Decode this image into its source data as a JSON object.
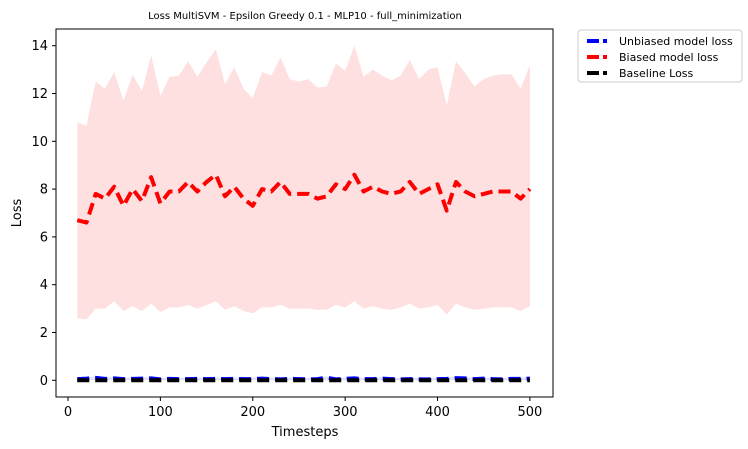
{
  "chart_data": {
    "type": "line",
    "title": "Loss MultiSVM - Epsilon Greedy 0.1 - MLP10 - full_minimization",
    "xlabel": "Timesteps",
    "ylabel": "Loss",
    "xlim": [
      -13,
      525
    ],
    "ylim": [
      -0.7,
      14.7
    ],
    "xticks": [
      0,
      100,
      200,
      300,
      400,
      500
    ],
    "yticks": [
      0,
      2,
      4,
      6,
      8,
      10,
      12,
      14
    ],
    "grid": false,
    "legend_position": "outside-top-right",
    "x": [
      10,
      20,
      30,
      40,
      50,
      60,
      70,
      80,
      90,
      100,
      110,
      120,
      130,
      140,
      150,
      160,
      170,
      180,
      190,
      200,
      210,
      220,
      230,
      240,
      250,
      260,
      270,
      280,
      290,
      300,
      310,
      320,
      330,
      340,
      350,
      360,
      370,
      380,
      390,
      400,
      410,
      420,
      430,
      440,
      450,
      460,
      470,
      480,
      490,
      500
    ],
    "series": [
      {
        "name": "Unbiased model loss",
        "color": "#0000ff",
        "values": [
          0.05,
          0.07,
          0.1,
          0.06,
          0.08,
          0.05,
          0.06,
          0.07,
          0.08,
          0.04,
          0.06,
          0.05,
          0.05,
          0.06,
          0.05,
          0.06,
          0.05,
          0.06,
          0.05,
          0.05,
          0.07,
          0.05,
          0.04,
          0.06,
          0.05,
          0.04,
          0.05,
          0.11,
          0.04,
          0.06,
          0.08,
          0.05,
          0.05,
          0.07,
          0.05,
          0.04,
          0.05,
          0.04,
          0.04,
          0.05,
          0.06,
          0.09,
          0.08,
          0.05,
          0.07,
          0.05,
          0.04,
          0.06,
          0.06,
          0.07
        ],
        "std_band_lower": [
          0.0,
          0.0,
          0.0,
          0.0,
          0.0,
          0.0,
          0.0,
          0.0,
          0.0,
          0.0,
          0.0,
          0.0,
          0.0,
          0.0,
          0.0,
          0.0,
          0.0,
          0.0,
          0.0,
          0.0,
          0.0,
          0.0,
          0.0,
          0.0,
          0.0,
          0.0,
          0.0,
          0.0,
          0.0,
          0.0,
          0.0,
          0.0,
          0.0,
          0.0,
          0.0,
          0.0,
          0.0,
          0.0,
          0.0,
          0.0,
          0.0,
          0.0,
          0.0,
          0.0,
          0.0,
          0.0,
          0.0,
          0.0,
          0.0,
          0.0
        ],
        "std_band_upper": [
          0.1,
          0.12,
          0.15,
          0.11,
          0.13,
          0.1,
          0.11,
          0.12,
          0.13,
          0.09,
          0.11,
          0.1,
          0.1,
          0.11,
          0.1,
          0.11,
          0.1,
          0.11,
          0.1,
          0.1,
          0.12,
          0.1,
          0.09,
          0.11,
          0.1,
          0.09,
          0.1,
          0.16,
          0.09,
          0.11,
          0.13,
          0.1,
          0.1,
          0.12,
          0.1,
          0.09,
          0.1,
          0.09,
          0.09,
          0.1,
          0.11,
          0.14,
          0.13,
          0.1,
          0.12,
          0.1,
          0.09,
          0.11,
          0.11,
          0.12
        ]
      },
      {
        "name": "Biased model loss",
        "color": "#ff0000",
        "values": [
          6.7,
          6.6,
          7.8,
          7.6,
          8.1,
          7.3,
          8.0,
          7.5,
          8.5,
          7.4,
          7.9,
          7.9,
          8.3,
          7.9,
          8.3,
          8.6,
          7.7,
          8.1,
          7.6,
          7.3,
          8.0,
          7.9,
          8.3,
          7.8,
          7.8,
          7.8,
          7.6,
          7.7,
          8.2,
          8.0,
          8.6,
          7.9,
          8.1,
          7.9,
          7.8,
          7.9,
          8.3,
          7.8,
          8.0,
          8.2,
          7.1,
          8.3,
          7.9,
          7.7,
          7.8,
          7.9,
          7.9,
          7.9,
          7.6,
          8.0
        ],
        "std_band_lower": [
          2.6,
          2.55,
          3.0,
          3.0,
          3.3,
          2.9,
          3.1,
          2.9,
          3.2,
          2.85,
          3.05,
          3.05,
          3.15,
          3.0,
          3.15,
          3.3,
          2.95,
          3.1,
          2.9,
          2.8,
          3.05,
          3.05,
          3.15,
          3.0,
          3.0,
          3.0,
          2.95,
          2.95,
          3.15,
          3.05,
          3.3,
          3.0,
          3.1,
          3.0,
          2.95,
          3.05,
          3.2,
          3.0,
          3.05,
          3.15,
          2.75,
          3.2,
          3.05,
          2.95,
          3.0,
          3.05,
          3.05,
          3.05,
          2.9,
          3.1
        ],
        "std_band_upper": [
          10.8,
          10.65,
          12.5,
          12.2,
          12.9,
          11.7,
          12.8,
          12.1,
          13.6,
          11.9,
          12.7,
          12.75,
          13.35,
          12.7,
          13.3,
          13.85,
          12.4,
          13.1,
          12.2,
          11.8,
          12.9,
          12.75,
          13.5,
          12.6,
          12.5,
          12.6,
          12.25,
          12.3,
          13.25,
          12.95,
          14.0,
          12.7,
          13.0,
          12.75,
          12.55,
          12.75,
          13.4,
          12.6,
          13.0,
          13.1,
          11.5,
          13.35,
          12.85,
          12.3,
          12.6,
          12.75,
          12.8,
          12.8,
          12.2,
          13.2
        ]
      },
      {
        "name": "Baseline Loss",
        "color": "#000000",
        "values": [
          0.0,
          0.0,
          0.0,
          0.0,
          0.0,
          0.0,
          0.0,
          0.0,
          0.0,
          0.0,
          0.0,
          0.0,
          0.0,
          0.0,
          0.0,
          0.0,
          0.0,
          0.0,
          0.0,
          0.0,
          0.0,
          0.0,
          0.0,
          0.0,
          0.0,
          0.0,
          0.0,
          0.0,
          0.0,
          0.0,
          0.0,
          0.0,
          0.0,
          0.0,
          0.0,
          0.0,
          0.0,
          0.0,
          0.0,
          0.0,
          0.0,
          0.0,
          0.0,
          0.0,
          0.0,
          0.0,
          0.0,
          0.0,
          0.0,
          0.0
        ]
      }
    ]
  }
}
